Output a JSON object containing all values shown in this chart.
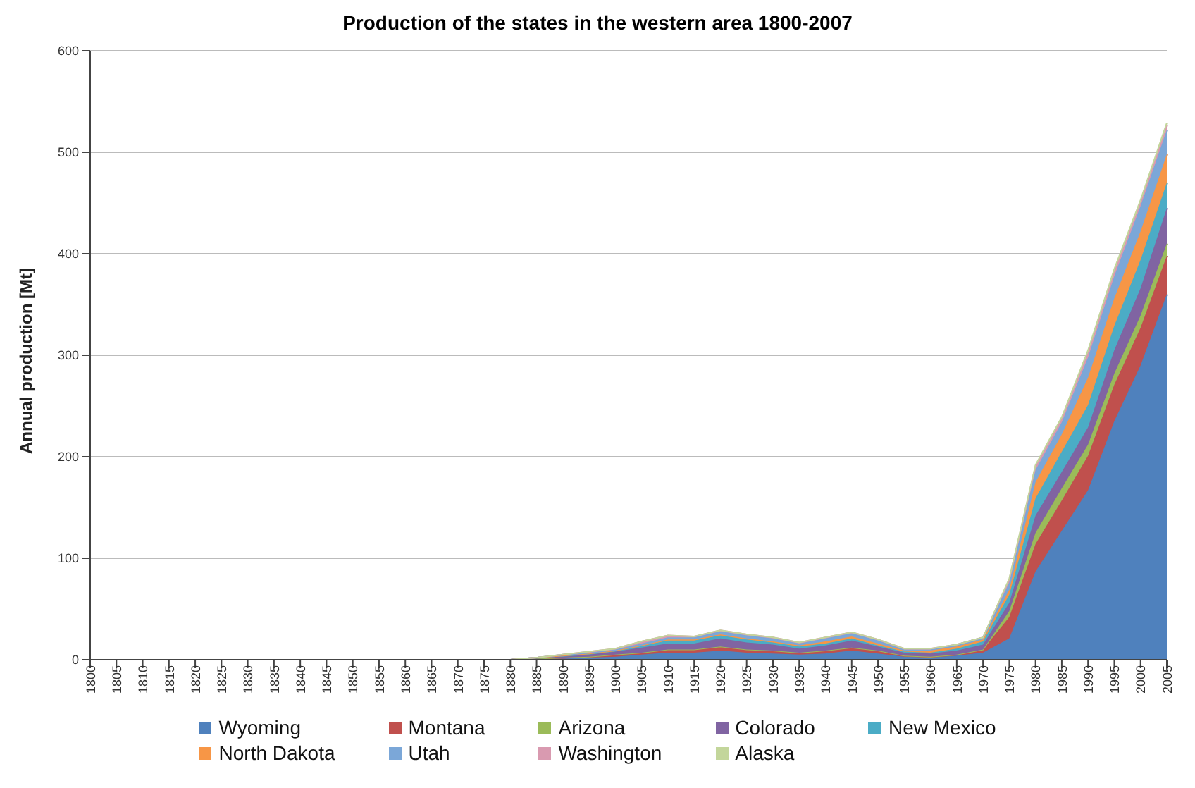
{
  "chart_data": {
    "type": "area",
    "stacked": true,
    "title": "Production of the states in the western area 1800-2007",
    "ylabel": "Annual production  [Mt]",
    "categories": [
      "1800",
      "1805",
      "1810",
      "1815",
      "1820",
      "1825",
      "1830",
      "1835",
      "1840",
      "1845",
      "1850",
      "1855",
      "1860",
      "1865",
      "1870",
      "1875",
      "1880",
      "1885",
      "1890",
      "1895",
      "1900",
      "1905",
      "1910",
      "1915",
      "1920",
      "1925",
      "1930",
      "1935",
      "1940",
      "1945",
      "1950",
      "1955",
      "1960",
      "1965",
      "1970",
      "1975",
      "1980",
      "1985",
      "1990",
      "1995",
      "2000",
      "2005"
    ],
    "series": [
      {
        "name": "Wyoming",
        "color": "#4f81bd",
        "values": [
          0,
          0,
          0,
          0,
          0,
          0,
          0,
          0,
          0,
          0,
          0,
          0,
          0,
          0,
          0,
          0,
          0,
          1,
          1,
          2,
          3,
          5,
          7,
          7,
          9,
          7,
          6,
          5,
          6,
          9,
          6,
          3,
          2,
          4,
          7,
          21,
          87,
          127,
          167,
          235,
          290,
          360
        ]
      },
      {
        "name": "Montana",
        "color": "#c0504d",
        "values": [
          0,
          0,
          0,
          0,
          0,
          0,
          0,
          0,
          0,
          0,
          0,
          0,
          0,
          0,
          0,
          0,
          0,
          0,
          1,
          1,
          2,
          2,
          3,
          3,
          4,
          3,
          3,
          2,
          3,
          3,
          3,
          1,
          1,
          1,
          3,
          21,
          27,
          30,
          34,
          36,
          37,
          38
        ]
      },
      {
        "name": "Arizona",
        "color": "#9bbb59",
        "values": [
          0,
          0,
          0,
          0,
          0,
          0,
          0,
          0,
          0,
          0,
          0,
          0,
          0,
          0,
          0,
          0,
          0,
          0,
          0,
          0,
          0,
          0,
          0,
          0,
          0,
          0,
          0,
          0,
          0,
          0,
          0,
          0,
          0,
          0,
          0,
          6,
          11,
          12,
          11,
          11,
          12,
          12
        ]
      },
      {
        "name": "Colorado",
        "color": "#8064a2",
        "values": [
          0,
          0,
          0,
          0,
          0,
          0,
          0,
          0,
          0,
          0,
          0,
          0,
          0,
          0,
          0,
          0,
          0,
          1,
          1,
          2,
          3,
          5,
          6,
          6,
          8,
          7,
          6,
          4,
          5,
          7,
          4,
          3,
          3,
          4,
          5,
          8,
          17,
          16,
          17,
          23,
          27,
          35
        ]
      },
      {
        "name": "New Mexico",
        "color": "#4bacc6",
        "values": [
          0,
          0,
          0,
          0,
          0,
          0,
          0,
          0,
          0,
          0,
          0,
          0,
          0,
          0,
          0,
          0,
          0,
          0,
          1,
          1,
          1,
          2,
          3,
          3,
          3,
          3,
          2,
          2,
          2,
          2,
          1,
          1,
          1,
          2,
          3,
          8,
          17,
          20,
          22,
          24,
          28,
          25
        ]
      },
      {
        "name": "North Dakota",
        "color": "#f79646",
        "values": [
          0,
          0,
          0,
          0,
          0,
          0,
          0,
          0,
          0,
          0,
          0,
          0,
          0,
          0,
          0,
          0,
          0,
          0,
          0,
          0,
          0,
          0,
          1,
          1,
          1,
          1,
          1,
          1,
          2,
          2,
          2,
          1,
          2,
          2,
          2,
          5,
          16,
          17,
          27,
          27,
          28,
          28
        ]
      },
      {
        "name": "Utah",
        "color": "#7ba7d8",
        "values": [
          0,
          0,
          0,
          0,
          0,
          0,
          0,
          0,
          0,
          0,
          0,
          0,
          0,
          0,
          0,
          0,
          0,
          0,
          1,
          1,
          1,
          2,
          2,
          2,
          3,
          3,
          3,
          2,
          3,
          3,
          3,
          1,
          1,
          2,
          2,
          7,
          12,
          12,
          20,
          22,
          25,
          24
        ]
      },
      {
        "name": "Washington",
        "color": "#d99ab0",
        "values": [
          0,
          0,
          0,
          0,
          0,
          0,
          0,
          0,
          0,
          0,
          0,
          0,
          0,
          0,
          0,
          0,
          0,
          0,
          0,
          1,
          1,
          2,
          2,
          1,
          1,
          1,
          1,
          1,
          1,
          1,
          1,
          1,
          1,
          0,
          0,
          3,
          4,
          4,
          5,
          5,
          4,
          5
        ]
      },
      {
        "name": "Alaska",
        "color": "#c3d69b",
        "values": [
          0,
          0,
          0,
          0,
          0,
          0,
          0,
          0,
          0,
          0,
          0,
          0,
          0,
          0,
          0,
          0,
          0,
          0,
          0,
          0,
          0,
          0,
          0,
          0,
          0,
          0,
          0,
          0,
          0,
          0,
          0,
          0,
          0,
          0,
          0,
          1,
          1,
          1,
          2,
          2,
          2,
          2
        ]
      }
    ],
    "ylim": [
      0,
      600
    ],
    "yticks": [
      0,
      100,
      200,
      300,
      400,
      500,
      600
    ],
    "grid": "y",
    "legend": "bottom"
  }
}
